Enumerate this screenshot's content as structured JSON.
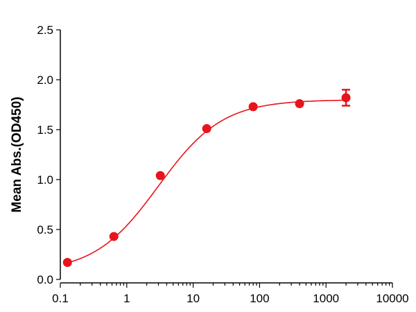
{
  "chart_data": {
    "type": "scatter",
    "title": "",
    "xlabel": "",
    "ylabel": "Mean Abs.(OD450)",
    "x_scale": "log",
    "xlim": [
      0.1,
      10000
    ],
    "ylim": [
      0,
      2.5
    ],
    "x_ticks": [
      0.1,
      1,
      10,
      100,
      1000,
      10000
    ],
    "x_tick_labels": [
      "0.1",
      "1",
      "10",
      "100",
      "1000",
      "10000"
    ],
    "y_ticks": [
      0,
      0.5,
      1.0,
      1.5,
      2.0,
      2.5
    ],
    "y_tick_labels": [
      "0.0",
      "0.5",
      "1.0",
      "1.5",
      "2.0",
      "2.5"
    ],
    "grid": false,
    "legend": "none",
    "color": "#e8131b",
    "series": [
      {
        "x": [
          0.128,
          0.64,
          3.2,
          16,
          80,
          400,
          2000
        ],
        "y": [
          0.17,
          0.43,
          1.04,
          1.51,
          1.73,
          1.76,
          1.82
        ],
        "y_err": [
          0,
          0,
          0,
          0,
          0,
          0,
          0.08
        ]
      }
    ],
    "fit_curve": {
      "type": "4PL",
      "bottom": 0.07,
      "top": 1.8,
      "ec50": 3.0,
      "hill": 0.9
    }
  }
}
